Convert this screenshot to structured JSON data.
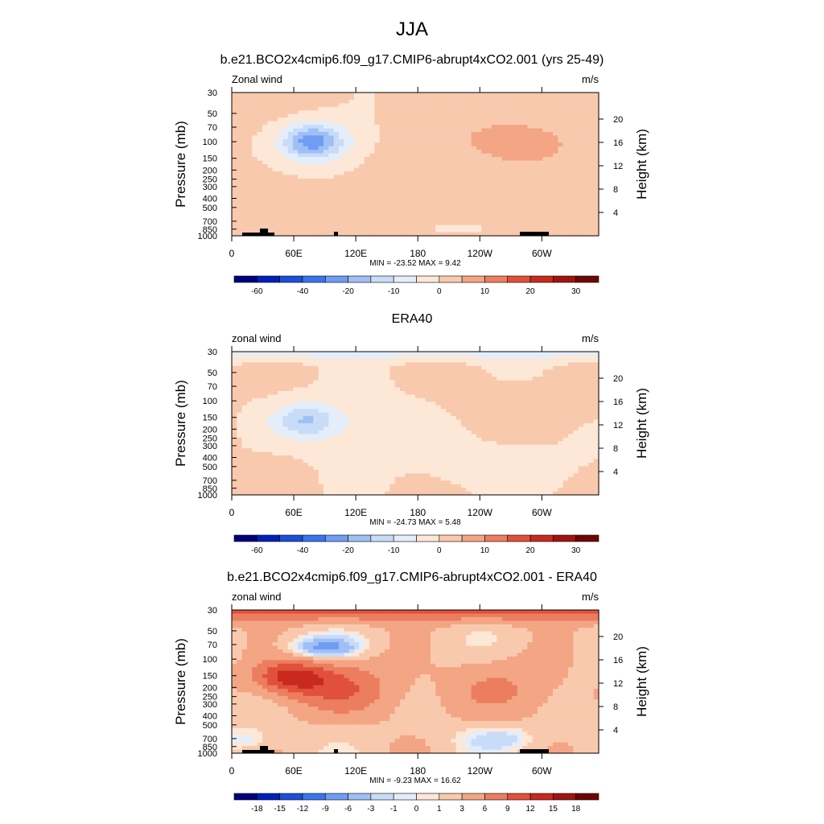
{
  "figure": {
    "title": "JJA"
  },
  "chart_data": [
    {
      "type": "heatmap",
      "title": "b.e21.BCO2x4cmip6.f09_g17.CMIP6-abrupt4xCO2.001 (yrs 25-49)",
      "left_label": "Zonal wind",
      "right_label": "m/s",
      "ylabel": "Pressure (mb)",
      "ylabel_right": "Height (km)",
      "x_ticks": [
        {
          "lon": 0,
          "label": "0"
        },
        {
          "lon": 60,
          "label": "60E"
        },
        {
          "lon": 120,
          "label": "120E"
        },
        {
          "lon": 180,
          "label": "180"
        },
        {
          "lon": 240,
          "label": "120W"
        },
        {
          "lon": 300,
          "label": "60W"
        }
      ],
      "y_ticks": [
        "30",
        "50",
        "70",
        "100",
        "150",
        "200",
        "250",
        "300",
        "400",
        "500",
        "700",
        "850",
        "1000"
      ],
      "height_ticks": [
        "20",
        "16",
        "12",
        "8",
        "4"
      ],
      "xlim": [
        0,
        355
      ],
      "ylim": [
        1000,
        30
      ],
      "stats": "MIN = -23.52  MAX =   9.42",
      "min": -23.52,
      "max": 9.42,
      "colorbar_labels": [
        {
          "label": "-60",
          "index": 1
        },
        {
          "label": "-40",
          "index": 3
        },
        {
          "label": "-20",
          "index": 5
        },
        {
          "label": "-10",
          "index": 7
        },
        {
          "label": "0",
          "index": 9
        },
        {
          "label": "10",
          "index": 11
        },
        {
          "label": "20",
          "index": 13
        },
        {
          "label": "30",
          "index": 15
        }
      ],
      "features": [
        {
          "lon": 80,
          "p": 100,
          "value": -20
        },
        {
          "lon": 220,
          "p": 300,
          "value": 3
        },
        {
          "lon": 270,
          "p": 130,
          "value": 6
        }
      ]
    },
    {
      "type": "heatmap",
      "title": "ERA40",
      "left_label": "zonal wind",
      "right_label": "m/s",
      "ylabel": "Pressure (mb)",
      "ylabel_right": "Height (km)",
      "x_ticks": [
        {
          "lon": 0,
          "label": "0"
        },
        {
          "lon": 60,
          "label": "60E"
        },
        {
          "lon": 120,
          "label": "120E"
        },
        {
          "lon": 180,
          "label": "180"
        },
        {
          "lon": 240,
          "label": "120W"
        },
        {
          "lon": 300,
          "label": "60W"
        }
      ],
      "y_ticks": [
        "30",
        "50",
        "70",
        "100",
        "150",
        "200",
        "250",
        "300",
        "400",
        "500",
        "700",
        "850",
        "1000"
      ],
      "height_ticks": [
        "20",
        "16",
        "12",
        "8",
        "4"
      ],
      "xlim": [
        0,
        355
      ],
      "ylim": [
        1000,
        30
      ],
      "stats": "MIN = -24.73  MAX =   5.48",
      "min": -24.73,
      "max": 5.48,
      "colorbar_labels": [
        {
          "label": "-60",
          "index": 1
        },
        {
          "label": "-40",
          "index": 3
        },
        {
          "label": "-20",
          "index": 5
        },
        {
          "label": "-10",
          "index": 7
        },
        {
          "label": "0",
          "index": 9
        },
        {
          "label": "10",
          "index": 11
        },
        {
          "label": "20",
          "index": 13
        },
        {
          "label": "30",
          "index": 15
        }
      ],
      "features": [
        {
          "lon": 70,
          "p": 150,
          "value": -20
        },
        {
          "lon": 290,
          "p": 120,
          "value": 3
        },
        {
          "lon": 30,
          "p": 30,
          "value": -8
        }
      ]
    },
    {
      "type": "heatmap",
      "title": "b.e21.BCO2x4cmip6.f09_g17.CMIP6-abrupt4xCO2.001 - ERA40",
      "left_label": "zonal wind",
      "right_label": "m/s",
      "ylabel": "Pressure (mb)",
      "ylabel_right": "Height (km)",
      "x_ticks": [
        {
          "lon": 0,
          "label": "0"
        },
        {
          "lon": 60,
          "label": "60E"
        },
        {
          "lon": 120,
          "label": "120E"
        },
        {
          "lon": 180,
          "label": "180"
        },
        {
          "lon": 240,
          "label": "120W"
        },
        {
          "lon": 300,
          "label": "60W"
        }
      ],
      "y_ticks": [
        "30",
        "50",
        "70",
        "100",
        "150",
        "200",
        "250",
        "300",
        "400",
        "500",
        "700",
        "850",
        "1000"
      ],
      "height_ticks": [
        "20",
        "16",
        "12",
        "8",
        "4"
      ],
      "xlim": [
        0,
        355
      ],
      "ylim": [
        1000,
        30
      ],
      "stats": "MIN = -9.23  MAX = 16.62",
      "min": -9.23,
      "max": 16.62,
      "colorbar_labels": [
        {
          "label": "-18",
          "index": 1
        },
        {
          "label": "-15",
          "index": 2
        },
        {
          "label": "-12",
          "index": 3
        },
        {
          "label": "-9",
          "index": 4
        },
        {
          "label": "-6",
          "index": 5
        },
        {
          "label": "-3",
          "index": 6
        },
        {
          "label": "-1",
          "index": 7
        },
        {
          "label": "0",
          "index": 8
        },
        {
          "label": "1",
          "index": 9
        },
        {
          "label": "3",
          "index": 10
        },
        {
          "label": "6",
          "index": 11
        },
        {
          "label": "9",
          "index": 12
        },
        {
          "label": "12",
          "index": 13
        },
        {
          "label": "15",
          "index": 14
        },
        {
          "label": "18",
          "index": 15
        }
      ],
      "features": [
        {
          "lon": 60,
          "p": 175,
          "value": 15
        },
        {
          "lon": 90,
          "p": 85,
          "value": -9
        },
        {
          "lon": 0,
          "p": 30,
          "value": 9
        },
        {
          "lon": 260,
          "p": 200,
          "value": 6
        }
      ]
    }
  ],
  "colors": {
    "colorbar": [
      "#00007a",
      "#0020b8",
      "#1a4fd6",
      "#3a74ec",
      "#6f9df4",
      "#9fbff6",
      "#c8dcf8",
      "#e4eefa",
      "#fde8d8",
      "#f9c9ae",
      "#f3a584",
      "#ec7d5e",
      "#e0503a",
      "#c82a1e",
      "#a01410",
      "#6e0606"
    ]
  }
}
